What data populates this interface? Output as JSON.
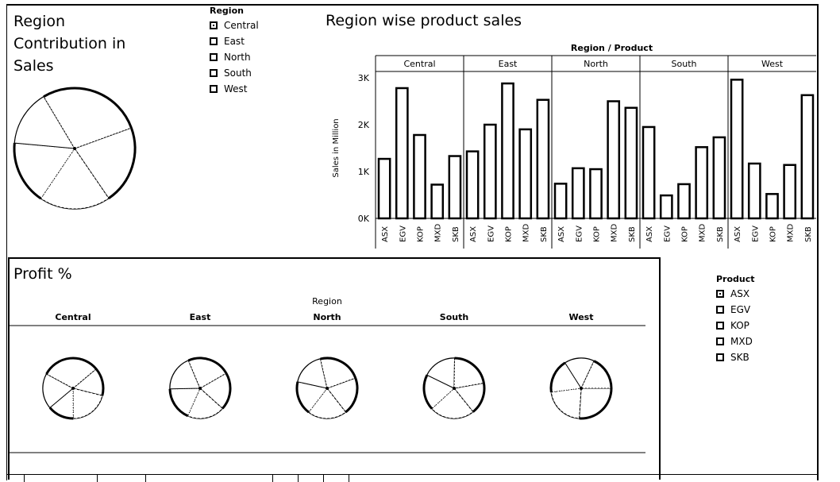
{
  "region_pie": {
    "title_lines": [
      "Region",
      "Contribution in",
      "Sales"
    ],
    "chart_data": {
      "type": "pie",
      "categories": [
        "Central",
        "East",
        "North",
        "South",
        "West"
      ],
      "values": [
        21,
        19,
        17,
        15,
        28
      ]
    }
  },
  "region_legend": {
    "title": "Region",
    "items": [
      {
        "label": "Central",
        "checked": true
      },
      {
        "label": "East",
        "checked": false
      },
      {
        "label": "North",
        "checked": false
      },
      {
        "label": "South",
        "checked": false
      },
      {
        "label": "West",
        "checked": false
      }
    ]
  },
  "product_legend": {
    "title": "Product",
    "items": [
      {
        "label": "ASX",
        "checked": true
      },
      {
        "label": "EGV",
        "checked": false
      },
      {
        "label": "KOP",
        "checked": false
      },
      {
        "label": "MXD",
        "checked": false
      },
      {
        "label": "SKB",
        "checked": false
      }
    ]
  },
  "sales_chart": {
    "title": "Region wise product sales",
    "header_label": "Region / Product",
    "ylabel": "Sales in Million",
    "yticks": [
      "0K",
      "1K",
      "2K",
      "3K"
    ],
    "chart_data": {
      "type": "bar",
      "groups": [
        "Central",
        "East",
        "North",
        "South",
        "West"
      ],
      "categories": [
        "ASX",
        "EGV",
        "KOP",
        "MXD",
        "SKB"
      ],
      "ylim": [
        0,
        3000
      ],
      "values": {
        "Central": [
          1270,
          2780,
          1780,
          720,
          1330
        ],
        "East": [
          1430,
          2000,
          2880,
          1900,
          2530
        ],
        "North": [
          740,
          1070,
          1050,
          2500,
          2360
        ],
        "South": [
          1950,
          490,
          730,
          1520,
          1730
        ],
        "West": [
          2960,
          1170,
          520,
          1140,
          2630
        ]
      }
    }
  },
  "profit": {
    "title": "Profit %",
    "header_label": "Region",
    "regions": [
      "Central",
      "East",
      "North",
      "South",
      "West"
    ],
    "chart_data": {
      "type": "pie",
      "categories": [
        "ASX",
        "EGV",
        "KOP",
        "MXD",
        "SKB"
      ],
      "series": [
        {
          "name": "Central",
          "values": [
            15,
            21,
            14,
            19,
            31
          ]
        },
        {
          "name": "East",
          "values": [
            20,
            20,
            18,
            19,
            23
          ]
        },
        {
          "name": "North",
          "values": [
            20,
            21,
            18,
            18,
            23
          ]
        },
        {
          "name": "South",
          "values": [
            17,
            24,
            19,
            18,
            22
          ]
        },
        {
          "name": "West",
          "values": [
            26,
            22,
            18,
            16,
            18
          ]
        }
      ]
    }
  }
}
